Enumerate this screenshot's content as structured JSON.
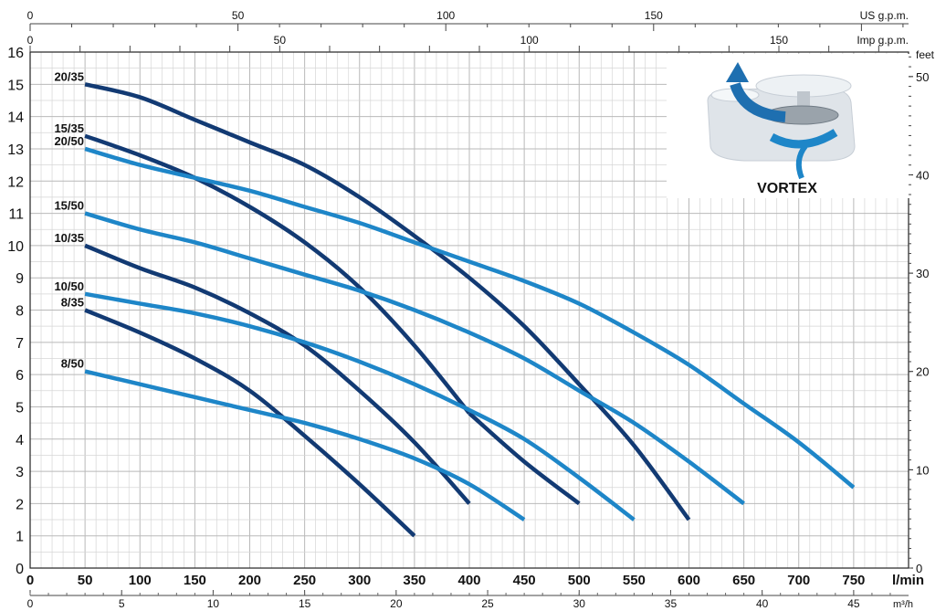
{
  "chart_data": {
    "type": "line",
    "title": "",
    "xlabel": "l/min",
    "ylabel": "",
    "xlim": [
      0,
      800
    ],
    "ylim": [
      0,
      16
    ],
    "grid": true,
    "y_ticks": [
      "0",
      "1",
      "2",
      "3",
      "4",
      "5",
      "6",
      "7",
      "8",
      "9",
      "10",
      "11",
      "12",
      "13",
      "14",
      "15",
      "16"
    ],
    "x_ticks": [
      "0",
      "50",
      "100",
      "150",
      "200",
      "250",
      "300",
      "350",
      "400",
      "450",
      "500",
      "550",
      "600",
      "650",
      "700",
      "750"
    ],
    "secondary_axes": {
      "right_unit": "feet",
      "right_ticks": [
        "0",
        "10",
        "20",
        "30",
        "40",
        "50"
      ],
      "top_us_unit": "US g.p.m.",
      "top_us_ticks": [
        "0",
        "50",
        "100",
        "150"
      ],
      "top_imp_unit": "Imp g.p.m.",
      "top_imp_ticks": [
        "0",
        "50",
        "100",
        "150"
      ],
      "bottom_unit": "m³/h",
      "bottom_ticks": [
        "0",
        "5",
        "10",
        "15",
        "20",
        "25",
        "30",
        "35",
        "40",
        "45"
      ]
    },
    "series": [
      {
        "name": "20/35",
        "color": "#123a73",
        "x": [
          50,
          100,
          150,
          200,
          250,
          300,
          350,
          400,
          450,
          500,
          550,
          600
        ],
        "y": [
          15,
          14.6,
          13.9,
          13.2,
          12.5,
          11.5,
          10.3,
          9.0,
          7.5,
          5.7,
          3.8,
          1.5
        ]
      },
      {
        "name": "15/35",
        "color": "#123a73",
        "x": [
          50,
          100,
          150,
          200,
          250,
          300,
          350,
          400
        ],
        "y": [
          13.4,
          12.8,
          12.1,
          11.2,
          10.1,
          8.7,
          6.9,
          4.8
        ]
      },
      {
        "name": "15/35 end",
        "color": "#123a73",
        "x": [
          400,
          450,
          500
        ],
        "y": [
          4.8,
          3.3,
          2.0
        ]
      },
      {
        "name": "20/50",
        "color": "#1e86c8",
        "x": [
          50,
          100,
          150,
          200,
          250,
          300,
          350,
          400,
          450,
          500,
          550,
          600,
          650,
          700,
          750
        ],
        "y": [
          13,
          12.5,
          12.1,
          11.7,
          11.2,
          10.7,
          10.1,
          9.5,
          8.9,
          8.2,
          7.3,
          6.3,
          5.1,
          3.9,
          2.5
        ]
      },
      {
        "name": "15/50",
        "color": "#1e86c8",
        "x": [
          50,
          100,
          150,
          200,
          250,
          300,
          350,
          400,
          450,
          500,
          550,
          600,
          650
        ],
        "y": [
          11,
          10.5,
          10.1,
          9.6,
          9.1,
          8.6,
          8.0,
          7.3,
          6.5,
          5.5,
          4.5,
          3.3,
          2.0
        ]
      },
      {
        "name": "10/35",
        "color": "#123a73",
        "x": [
          50,
          100,
          150,
          200,
          250,
          300,
          350,
          400
        ],
        "y": [
          10,
          9.3,
          8.7,
          7.9,
          6.9,
          5.5,
          3.9,
          2.0
        ]
      },
      {
        "name": "10/50",
        "color": "#1e86c8",
        "x": [
          50,
          100,
          150,
          200,
          250,
          300,
          350,
          400,
          450,
          500,
          550
        ],
        "y": [
          8.5,
          8.2,
          7.9,
          7.5,
          7.0,
          6.4,
          5.7,
          4.9,
          4.0,
          2.8,
          1.5
        ]
      },
      {
        "name": "8/35",
        "color": "#123a73",
        "x": [
          50,
          100,
          150,
          200,
          250,
          300,
          350
        ],
        "y": [
          8,
          7.3,
          6.5,
          5.5,
          4.1,
          2.6,
          1.0
        ]
      },
      {
        "name": "8/50",
        "color": "#1e86c8",
        "x": [
          50,
          100,
          150,
          200,
          250,
          300,
          350,
          400,
          450
        ],
        "y": [
          6.1,
          5.7,
          5.3,
          4.9,
          4.5,
          4.0,
          3.4,
          2.6,
          1.5
        ]
      }
    ]
  },
  "inset": {
    "label": "VORTEX",
    "colors": {
      "arrow": "#1e7ec2",
      "housing": "#e4e8ec"
    }
  }
}
